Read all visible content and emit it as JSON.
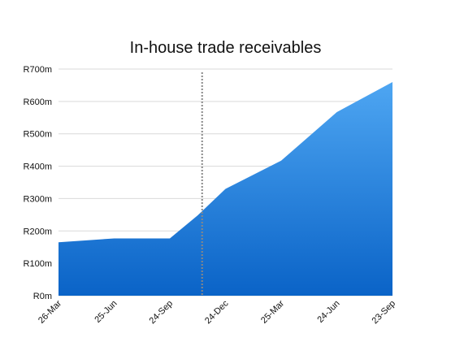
{
  "chart_data": {
    "type": "area",
    "title": "In-house trade receivables",
    "xlabel": "",
    "ylabel": "",
    "categories": [
      "26-Mar",
      "25-Jun",
      "24-Sep",
      "24-Dec",
      "25-Mar",
      "24-Jun",
      "23-Sep"
    ],
    "series": [
      {
        "values": [
          165,
          177,
          177,
          330,
          417,
          567,
          660
        ]
      }
    ],
    "extra_points": [
      {
        "between": [
          "24-Sep",
          "24-Dec"
        ],
        "fraction": 0.5,
        "value": 248
      }
    ],
    "y_ticks": [
      "R0m",
      "R100m",
      "R200m",
      "R300m",
      "R400m",
      "R500m",
      "R600m",
      "R700m"
    ],
    "y_tick_values": [
      0,
      100,
      200,
      300,
      400,
      500,
      600,
      700
    ],
    "ylim": [
      0,
      700
    ],
    "grid": true,
    "marker_line": {
      "between": [
        "24-Sep",
        "24-Dec"
      ],
      "fraction": 0.58,
      "style": "dotted"
    },
    "colors": {
      "fill_top": "#4ea6f2",
      "fill_bottom": "#0a63c7",
      "grid": "#d9d9d9",
      "marker": "#888888"
    }
  }
}
